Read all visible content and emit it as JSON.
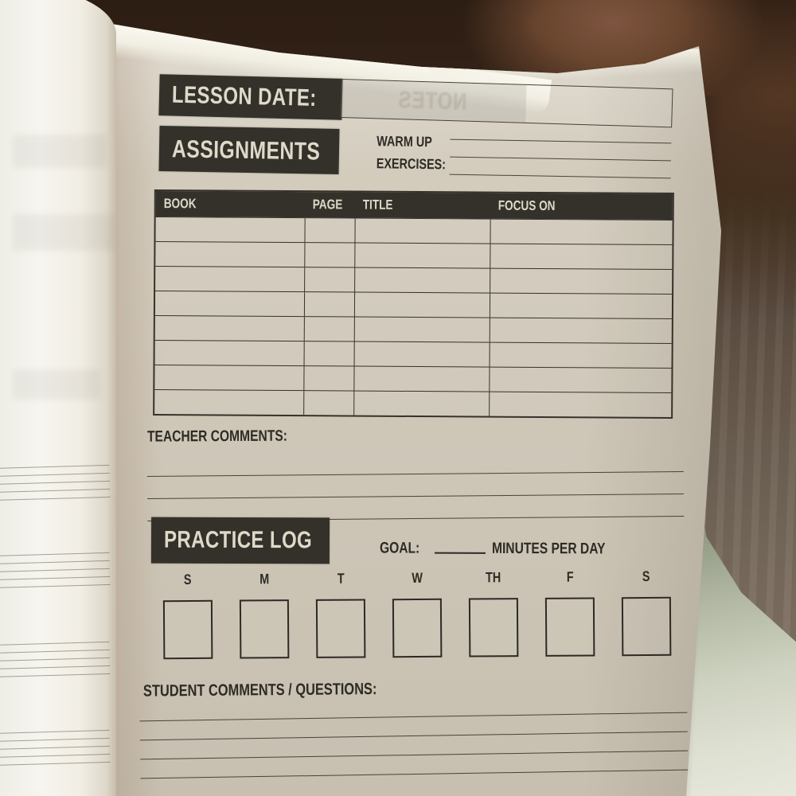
{
  "page": {
    "lesson_date": {
      "label": "LESSON DATE:",
      "value": "",
      "bleed_through_text": "NOTES"
    },
    "assignments": {
      "label": "ASSIGNMENTS",
      "warm_up_label_line1": "WARM UP",
      "warm_up_label_line2": "EXERCISES:",
      "warm_up_lines": [
        "",
        "",
        ""
      ]
    },
    "assignments_table": {
      "headers": [
        "BOOK",
        "PAGE",
        "TITLE",
        "FOCUS ON"
      ],
      "rows": [
        [
          "",
          "",
          "",
          ""
        ],
        [
          "",
          "",
          "",
          ""
        ],
        [
          "",
          "",
          "",
          ""
        ],
        [
          "",
          "",
          "",
          ""
        ],
        [
          "",
          "",
          "",
          ""
        ],
        [
          "",
          "",
          "",
          ""
        ],
        [
          "",
          "",
          "",
          ""
        ],
        [
          "",
          "",
          "",
          ""
        ]
      ]
    },
    "teacher_comments": {
      "label": "TEACHER COMMENTS:",
      "lines": [
        "",
        "",
        ""
      ]
    },
    "practice_log": {
      "label": "PRACTICE LOG",
      "goal_label": "GOAL:",
      "goal_value": "",
      "goal_suffix": "MINUTES PER DAY",
      "days": [
        "S",
        "M",
        "T",
        "W",
        "TH",
        "F",
        "S"
      ],
      "day_boxes": [
        "",
        "",
        "",
        "",
        "",
        "",
        ""
      ]
    },
    "student_comments": {
      "label": "STUDENT COMMENTS / QUESTIONS:",
      "lines": [
        "",
        "",
        "",
        ""
      ]
    },
    "colors": {
      "banner": "#34312a",
      "ink": "#2e2b25",
      "paper": "#d3ccbd",
      "banner_text": "#ded9c9"
    }
  }
}
